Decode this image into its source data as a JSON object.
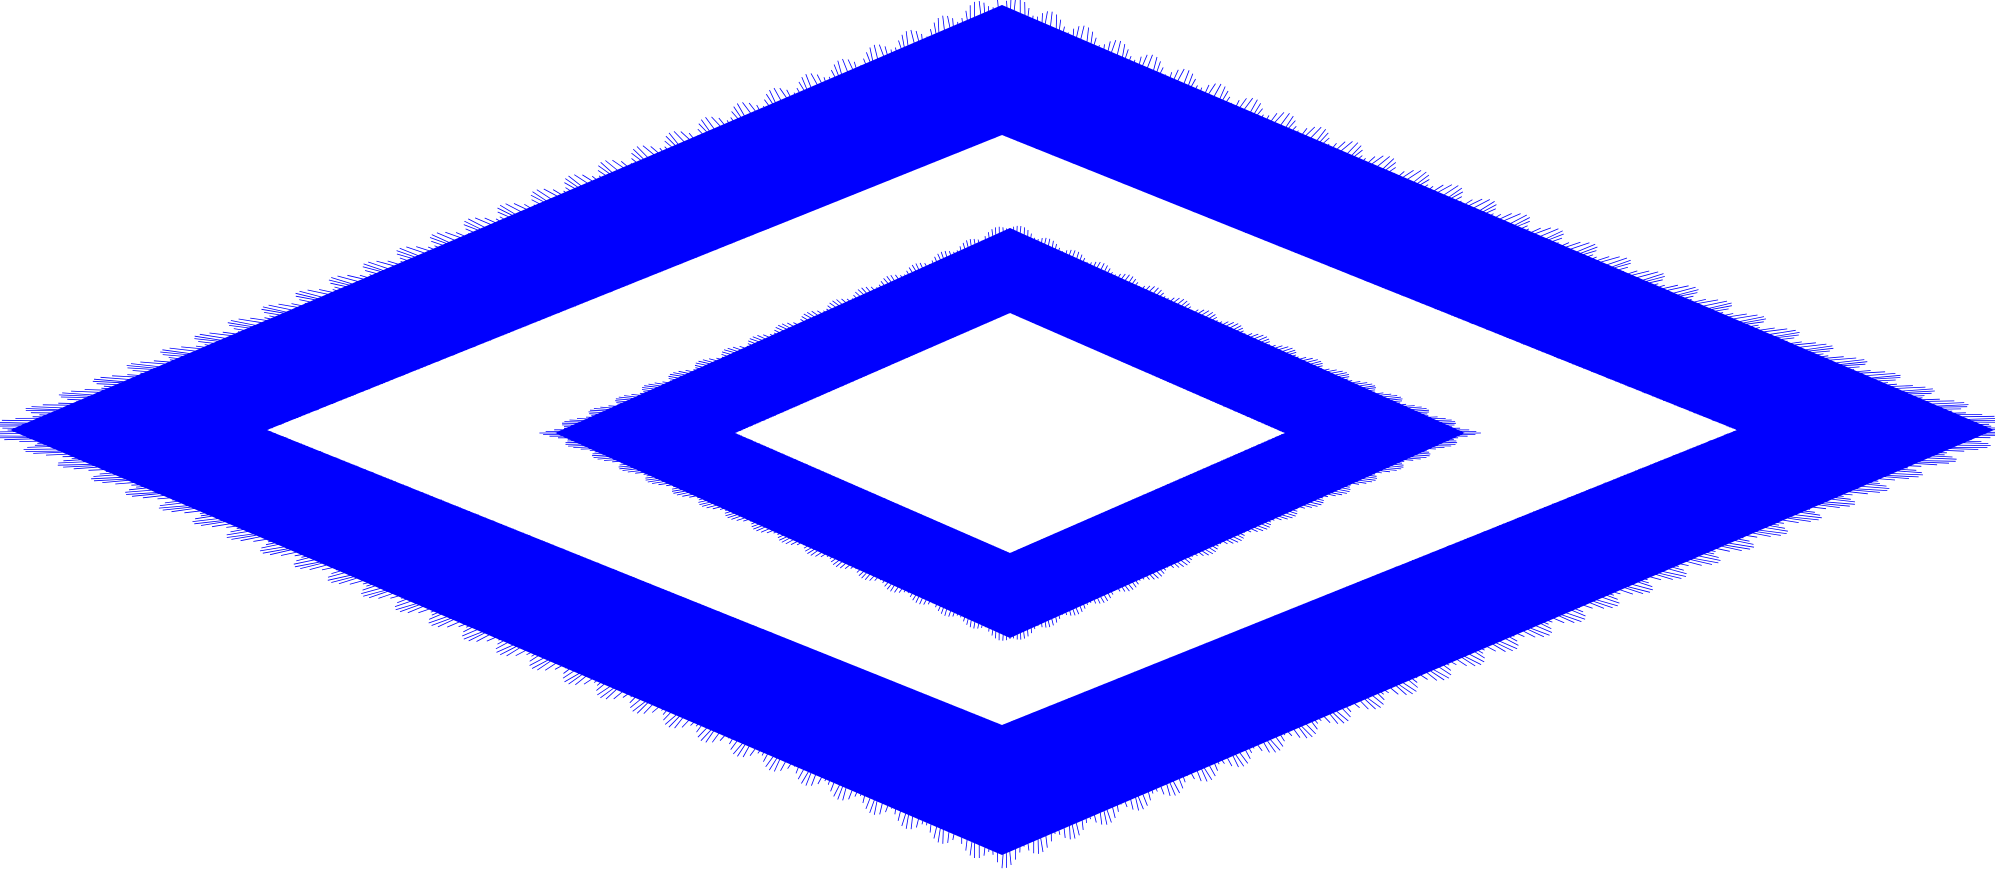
{
  "figure": {
    "background": "#ffffff",
    "stroke_color": "#0000ff",
    "fill_color": "#0000ff",
    "shapes": [
      "outer-diamond-band",
      "inner-diamond-band"
    ]
  }
}
